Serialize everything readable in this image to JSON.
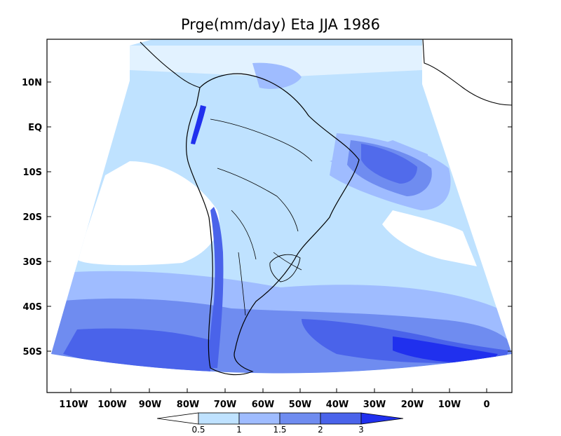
{
  "title": "Prge(mm/day) Eta JJA 1986",
  "lat_labels": [
    "10N",
    "EQ",
    "10S",
    "20S",
    "30S",
    "40S",
    "50S"
  ],
  "lon_labels": [
    "110W",
    "100W",
    "90W",
    "80W",
    "70W",
    "60W",
    "50W",
    "40W",
    "30W",
    "20W",
    "10W",
    "0"
  ],
  "colorbar": {
    "labels": [
      "0.5",
      "1",
      "1.5",
      "2",
      "3"
    ],
    "colors": [
      "#ffffff",
      "#bfe2ff",
      "#9fbcff",
      "#6f8cf0",
      "#4a63ea",
      "#2030ee"
    ]
  },
  "palette": {
    "white": "#ffffff",
    "light": "#bfe2ff",
    "mid": "#9fbcff",
    "medium": "#6f8cf0",
    "strong": "#4a63ea",
    "deep": "#2030ee"
  }
}
